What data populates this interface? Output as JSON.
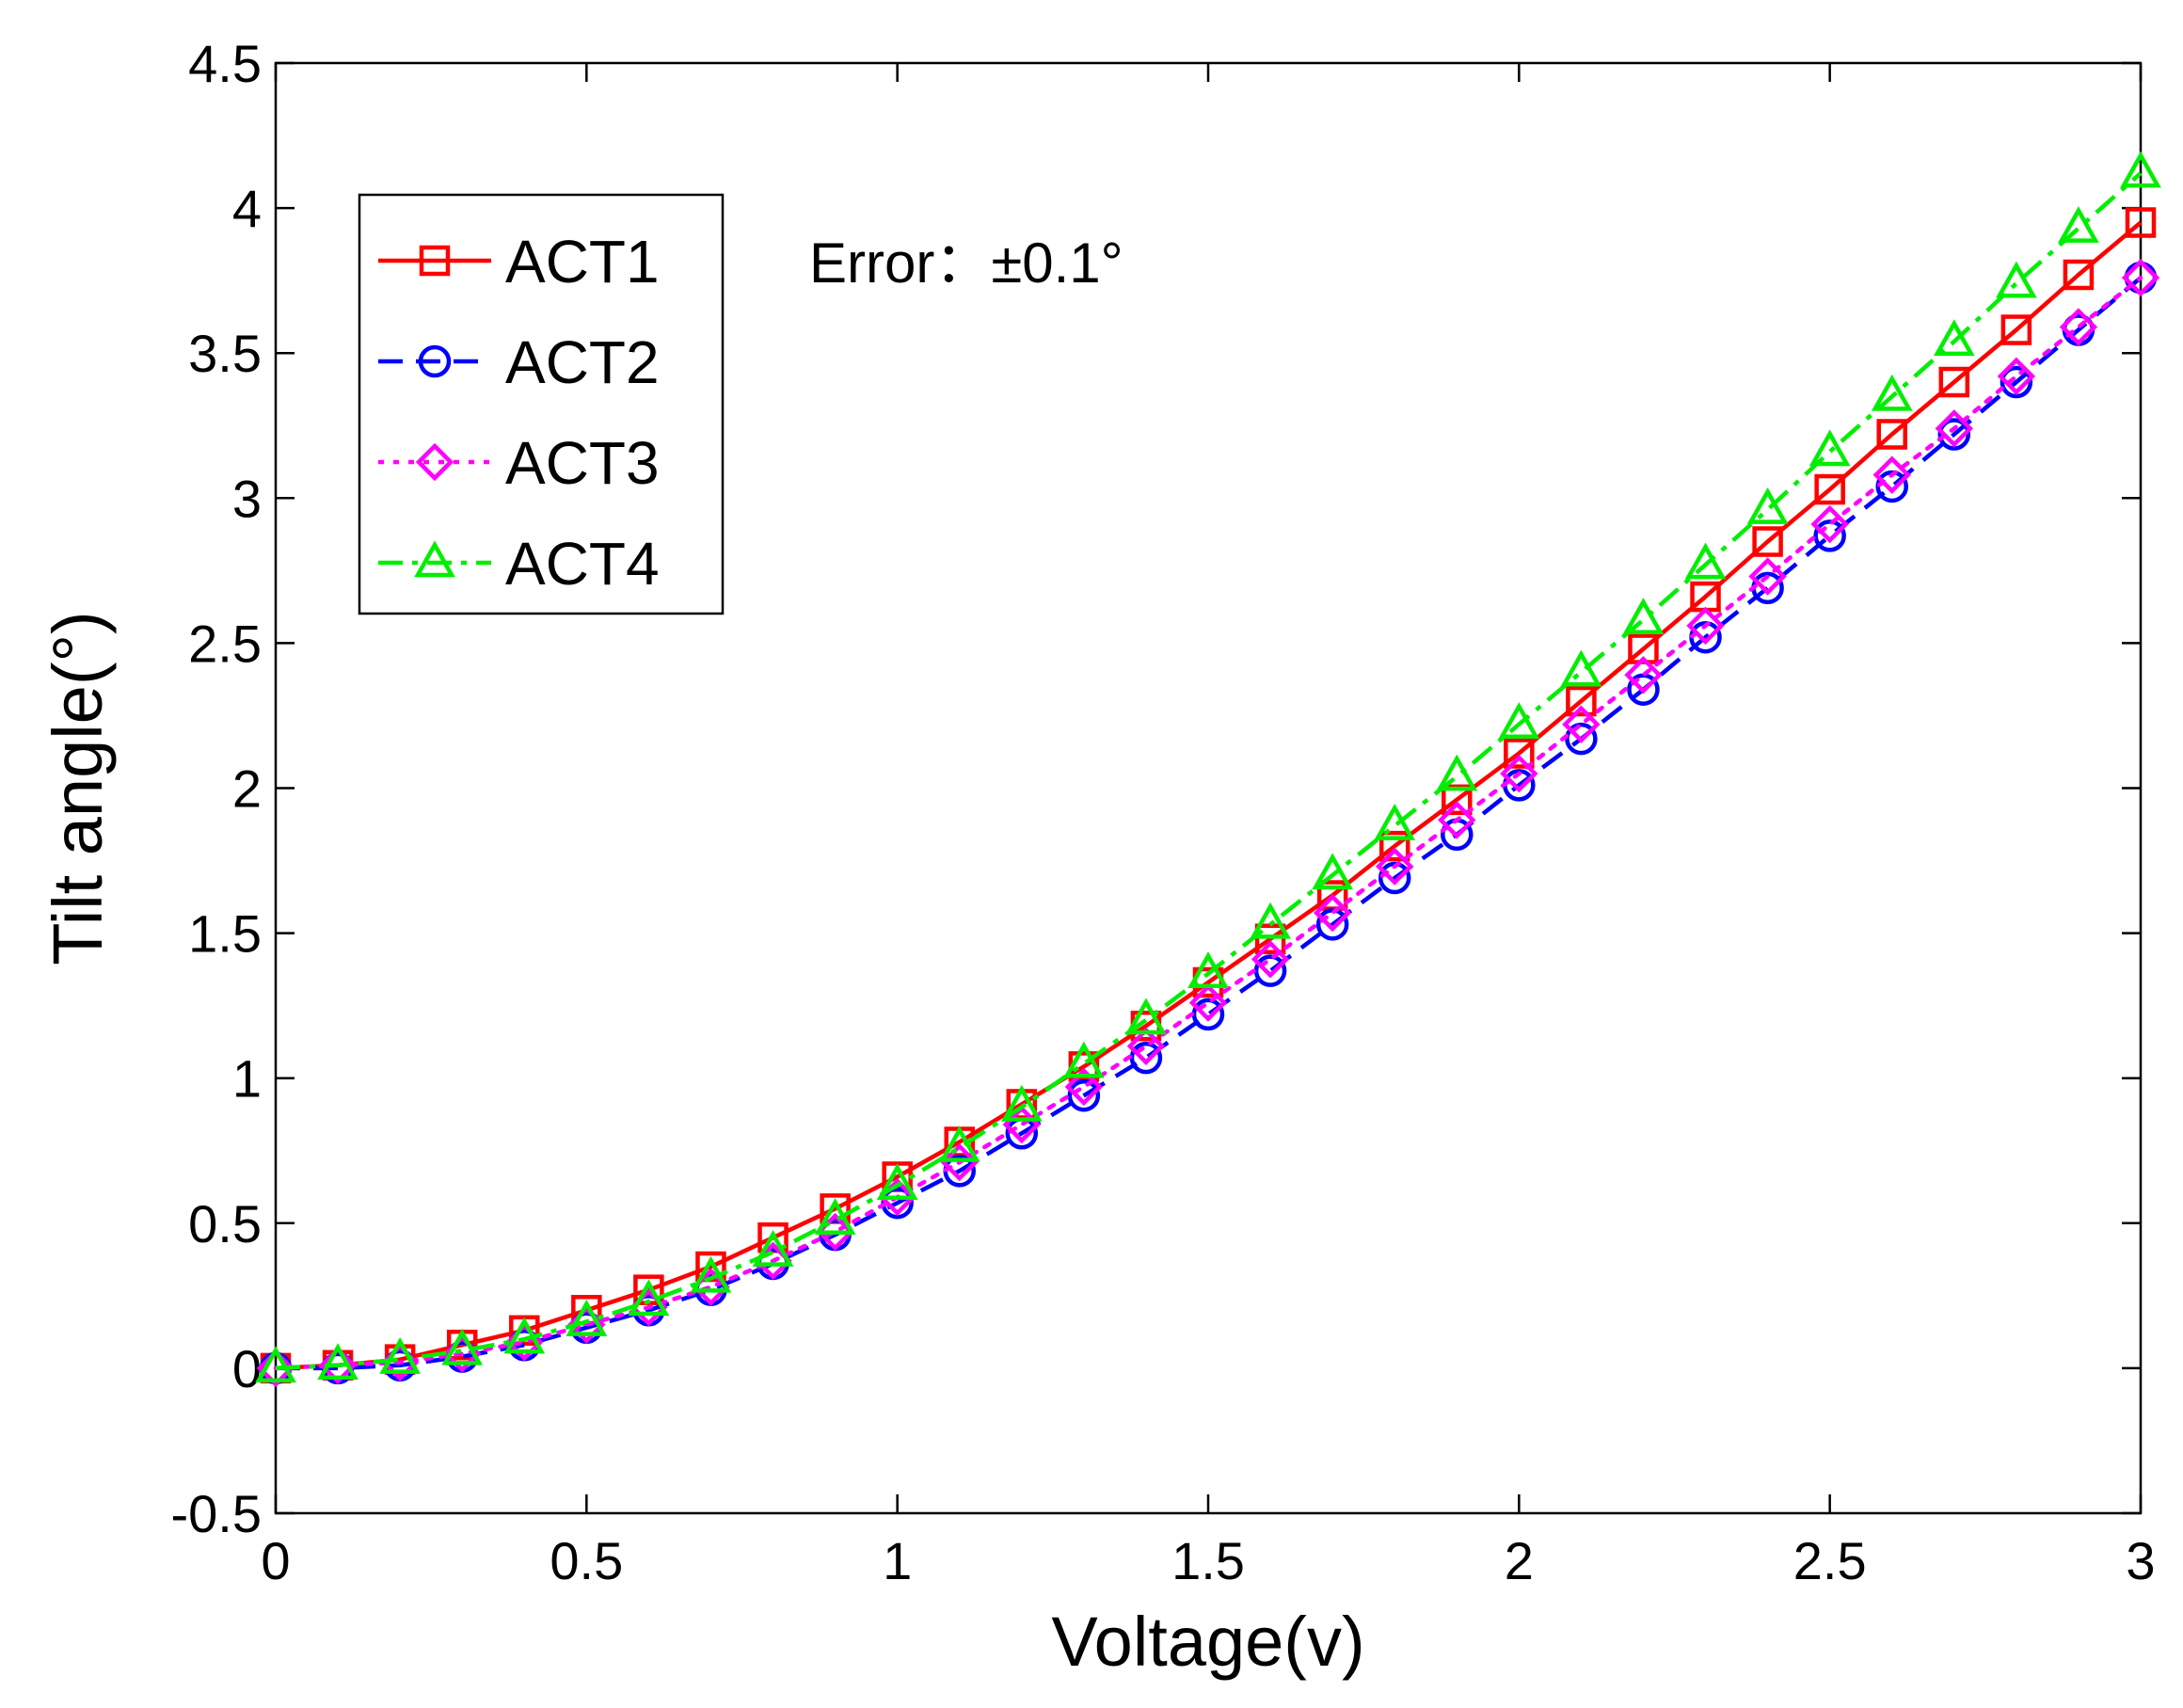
{
  "chart_data": {
    "type": "line",
    "title": "",
    "xlabel": "Voltage(v)",
    "ylabel": "Tilt angle(°)",
    "xlim": [
      0,
      3
    ],
    "ylim": [
      -0.5,
      4.5
    ],
    "xticks": [
      0,
      0.5,
      1,
      1.5,
      2,
      2.5,
      3
    ],
    "xtick_labels": [
      "0",
      "0.5",
      "1",
      "1.5",
      "2",
      "2.5",
      "3"
    ],
    "yticks": [
      -0.5,
      0,
      0.5,
      1,
      1.5,
      2,
      2.5,
      3,
      3.5,
      4,
      4.5
    ],
    "ytick_labels": [
      "-0.5",
      "0",
      "0.5",
      "1",
      "1.5",
      "2",
      "2.5",
      "3",
      "3.5",
      "4",
      "4.5"
    ],
    "grid": false,
    "legend_position": "top-left",
    "annotation": "Error：±0.1°",
    "x": [
      0,
      0.1,
      0.2,
      0.3,
      0.4,
      0.5,
      0.6,
      0.7,
      0.8,
      0.9,
      1.0,
      1.1,
      1.2,
      1.3,
      1.4,
      1.5,
      1.6,
      1.7,
      1.8,
      1.9,
      2.0,
      2.1,
      2.2,
      2.3,
      2.4,
      2.5,
      2.6,
      2.7,
      2.8,
      2.9,
      3.0
    ],
    "series": [
      {
        "name": "ACT1",
        "color": "#ff0000",
        "line_style": "solid",
        "marker": "square",
        "values": [
          0,
          0.01,
          0.03,
          0.08,
          0.13,
          0.2,
          0.27,
          0.35,
          0.45,
          0.55,
          0.66,
          0.78,
          0.91,
          1.04,
          1.18,
          1.33,
          1.48,
          1.63,
          1.8,
          1.96,
          2.12,
          2.3,
          2.48,
          2.66,
          2.85,
          3.03,
          3.22,
          3.4,
          3.58,
          3.77,
          3.95
        ]
      },
      {
        "name": "ACT2",
        "color": "#0000ff",
        "line_style": "dashed",
        "marker": "circle",
        "values": [
          0,
          0.0,
          0.01,
          0.04,
          0.08,
          0.14,
          0.2,
          0.27,
          0.36,
          0.46,
          0.57,
          0.68,
          0.81,
          0.94,
          1.07,
          1.22,
          1.37,
          1.53,
          1.69,
          1.84,
          2.01,
          2.17,
          2.34,
          2.52,
          2.69,
          2.87,
          3.04,
          3.22,
          3.4,
          3.58,
          3.76
        ]
      },
      {
        "name": "ACT3",
        "color": "#ff00ff",
        "line_style": "dotted",
        "marker": "diamond",
        "values": [
          0,
          0.01,
          0.02,
          0.05,
          0.09,
          0.15,
          0.21,
          0.28,
          0.37,
          0.47,
          0.59,
          0.71,
          0.84,
          0.97,
          1.11,
          1.26,
          1.41,
          1.57,
          1.73,
          1.89,
          2.05,
          2.22,
          2.39,
          2.56,
          2.73,
          2.91,
          3.08,
          3.24,
          3.42,
          3.59,
          3.76
        ]
      },
      {
        "name": "ACT4",
        "color": "#00ee00",
        "line_style": "dashdot",
        "marker": "triangle",
        "values": [
          0,
          0.01,
          0.03,
          0.06,
          0.1,
          0.16,
          0.23,
          0.31,
          0.4,
          0.51,
          0.63,
          0.76,
          0.9,
          1.05,
          1.2,
          1.36,
          1.53,
          1.7,
          1.87,
          2.04,
          2.22,
          2.4,
          2.58,
          2.77,
          2.96,
          3.16,
          3.35,
          3.54,
          3.74,
          3.93,
          4.12
        ]
      }
    ]
  }
}
